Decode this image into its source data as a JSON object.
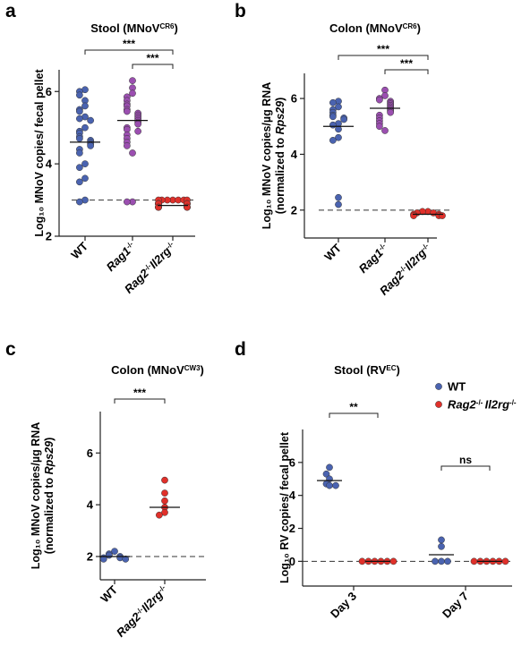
{
  "colors": {
    "WT": "#4a63b0",
    "Rag1": "#9b4fb0",
    "Rag2Il2rg": "#e0302a",
    "stroke": "#333333"
  },
  "chart_data": [
    {
      "panel": "a",
      "type": "scatter",
      "title": "Stool (MNoV",
      "title_sup": "CR6",
      "title_end": ")",
      "ylabel": [
        "Log₁₀ MNoV copies/ fecal pellet"
      ],
      "ylim": [
        2,
        6.6
      ],
      "yticks": [
        "2",
        "4",
        "6"
      ],
      "ytick_values": [
        2,
        4,
        6
      ],
      "detection_limit": 3,
      "categories": [
        {
          "label": "WT",
          "parts": [
            [
              "WT",
              "n"
            ]
          ],
          "color": "WT"
        },
        {
          "label": "Rag1-/-",
          "parts": [
            [
              "Rag1",
              "i"
            ],
            [
              "-/-",
              "sup"
            ]
          ],
          "color": "Rag1"
        },
        {
          "label": "Rag2-/-Il2rg-/-",
          "parts": [
            [
              "Rag2",
              "i"
            ],
            [
              "-/-",
              "sup"
            ],
            [
              "Il2rg",
              "i"
            ],
            [
              "-/-",
              "sup"
            ]
          ],
          "color": "Rag2Il2rg"
        }
      ],
      "series": [
        {
          "values": [
            6.05,
            6.0,
            5.9,
            5.75,
            5.6,
            5.5,
            5.45,
            5.3,
            5.25,
            5.2,
            5.0,
            4.9,
            4.85,
            4.75,
            4.7,
            4.65,
            4.6,
            4.55,
            4.5,
            4.4,
            4.3,
            4.0,
            3.9,
            3.6,
            3.5,
            3.0,
            2.95
          ],
          "mean": 4.6
        },
        {
          "values": [
            6.3,
            6.1,
            5.95,
            5.85,
            5.75,
            5.65,
            5.6,
            5.5,
            5.45,
            5.4,
            5.35,
            5.3,
            5.25,
            5.2,
            5.15,
            5.1,
            5.0,
            4.95,
            4.9,
            4.8,
            4.7,
            4.6,
            4.5,
            4.3,
            2.95,
            2.95
          ],
          "mean": 5.2
        },
        {
          "values": [
            3.0,
            3.0,
            3.0,
            3.0,
            3.0,
            3.0,
            3.0,
            2.9,
            2.9,
            2.9,
            2.9,
            2.9,
            2.9,
            2.9,
            2.8,
            2.8,
            2.8,
            2.8,
            2.8,
            2.8,
            2.8
          ],
          "mean": 2.85
        }
      ],
      "significance": [
        {
          "from": 0,
          "to": 2,
          "label": "***"
        },
        {
          "from": 1,
          "to": 2,
          "label": "***"
        }
      ]
    },
    {
      "panel": "b",
      "type": "scatter",
      "title": "Colon (MNoV",
      "title_sup": "CR6",
      "title_end": ")",
      "ylabel": [
        "Log₁₀ MNoV copies/µg RNA",
        "(normalized to Rps29)"
      ],
      "ylim": [
        1.0,
        6.9
      ],
      "yticks": [
        "2",
        "4",
        "6"
      ],
      "ytick_values": [
        2,
        4,
        6
      ],
      "detection_limit": 2,
      "categories": [
        {
          "label": "WT",
          "parts": [
            [
              "WT",
              "n"
            ]
          ],
          "color": "WT"
        },
        {
          "label": "Rag1-/-",
          "parts": [
            [
              "Rag1",
              "i"
            ],
            [
              "-/-",
              "sup"
            ]
          ],
          "color": "Rag1"
        },
        {
          "label": "Rag2-/-Il2rg-/-",
          "parts": [
            [
              "Rag2",
              "i"
            ],
            [
              "-/-",
              "sup"
            ],
            [
              "Il2rg",
              "i"
            ],
            [
              "-/-",
              "sup"
            ]
          ],
          "color": "Rag2Il2rg"
        }
      ],
      "series": [
        {
          "values": [
            5.9,
            5.85,
            5.7,
            5.6,
            5.5,
            5.4,
            5.35,
            5.3,
            5.25,
            5.1,
            5.05,
            4.9,
            4.6,
            4.5,
            2.45,
            2.2
          ],
          "mean": 5.0
        },
        {
          "values": [
            6.3,
            6.1,
            6.0,
            5.95,
            5.9,
            5.85,
            5.8,
            5.75,
            5.7,
            5.65,
            5.6,
            5.55,
            5.5,
            5.4,
            5.3,
            5.2,
            5.1,
            5.0,
            4.85
          ],
          "mean": 5.65
        },
        {
          "values": [
            1.95,
            1.95,
            1.9,
            1.9,
            1.85,
            1.85,
            1.8,
            1.8,
            1.8
          ],
          "mean": 1.85
        }
      ],
      "significance": [
        {
          "from": 0,
          "to": 2,
          "label": "***"
        },
        {
          "from": 1,
          "to": 2,
          "label": "***"
        }
      ]
    },
    {
      "panel": "c",
      "type": "scatter",
      "title": "Colon (MNoV",
      "title_sup": "CW3",
      "title_end": ")",
      "ylabel": [
        "Log₁₀ MNoV copies/µg RNA",
        "(normalized to Rps29)"
      ],
      "ylim": [
        1.1,
        7.6
      ],
      "yticks": [
        "2",
        "4",
        "6"
      ],
      "ytick_values": [
        2,
        4,
        6
      ],
      "detection_limit": 2,
      "categories": [
        {
          "label": "WT",
          "parts": [
            [
              "WT",
              "n"
            ]
          ],
          "color": "WT"
        },
        {
          "label": "Rag2-/-Il2rg-/-",
          "parts": [
            [
              "Rag2",
              "i"
            ],
            [
              "-/-",
              "sup"
            ],
            [
              "Il2rg",
              "i"
            ],
            [
              "-/-",
              "sup"
            ]
          ],
          "color": "Rag2Il2rg"
        }
      ],
      "series": [
        {
          "values": [
            2.2,
            2.1,
            2.05,
            2.0,
            1.95,
            1.95,
            1.9,
            1.9
          ],
          "mean": 2.0
        },
        {
          "values": [
            4.95,
            4.45,
            4.15,
            3.9,
            3.7,
            3.6
          ],
          "mean": 3.9
        }
      ],
      "significance": [
        {
          "from": 0,
          "to": 1,
          "label": "***"
        }
      ]
    },
    {
      "panel": "d",
      "type": "scatter",
      "title": "Stool (RV",
      "title_sup": "EC",
      "title_end": ")",
      "ylabel": [
        "Log₁₀ RV copies/ fecal pellet"
      ],
      "ylim": [
        -1.5,
        8.0
      ],
      "yticks": [
        "0",
        "2",
        "4",
        "6"
      ],
      "ytick_values": [
        0,
        2,
        4,
        6
      ],
      "detection_limit": 0,
      "legend": [
        {
          "label": "WT",
          "parts": [
            [
              "WT",
              "n"
            ]
          ],
          "color": "WT"
        },
        {
          "label": "Rag2-/- Il2rg-/-",
          "parts": [
            [
              "Rag2",
              "i"
            ],
            [
              "-/- ",
              "sup"
            ],
            [
              "Il2rg",
              "i"
            ],
            [
              "-/-",
              "sup"
            ]
          ],
          "color": "Rag2Il2rg"
        }
      ],
      "categories": [
        {
          "label": "Day 3",
          "parts": [
            [
              "Day 3",
              "n"
            ]
          ]
        },
        {
          "label": "Day 7",
          "parts": [
            [
              "Day 7",
              "n"
            ]
          ]
        }
      ],
      "groups": [
        {
          "cat": 0,
          "color": "WT",
          "values": [
            5.7,
            5.3,
            5.0,
            4.7,
            4.6,
            4.6
          ],
          "mean": 4.9
        },
        {
          "cat": 0,
          "color": "Rag2Il2rg",
          "values": [
            0,
            0,
            0,
            0,
            0,
            0
          ],
          "mean": 0
        },
        {
          "cat": 1,
          "color": "WT",
          "values": [
            1.3,
            0.9,
            0,
            0,
            0
          ],
          "mean": 0.4
        },
        {
          "cat": 1,
          "color": "Rag2Il2rg",
          "values": [
            0,
            0,
            0,
            0,
            0,
            0
          ],
          "mean": 0
        }
      ],
      "significance": [
        {
          "cat": 0,
          "label": "**"
        },
        {
          "cat": 1,
          "label": "ns"
        }
      ]
    }
  ]
}
